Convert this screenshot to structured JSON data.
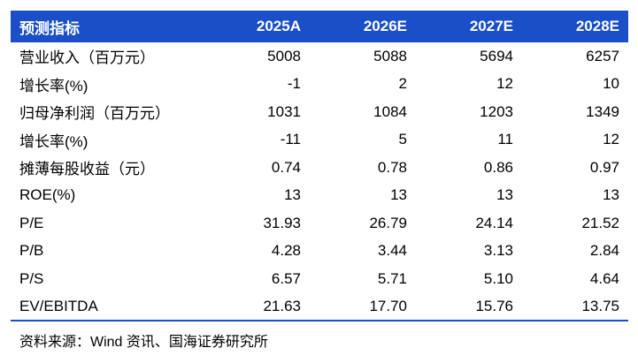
{
  "table": {
    "headers": [
      "预测指标",
      "2025A",
      "2026E",
      "2027E",
      "2028E"
    ],
    "rows": [
      [
        "营业收入（百万元）",
        "5008",
        "5088",
        "5694",
        "6257"
      ],
      [
        "增长率(%)",
        "-1",
        "2",
        "12",
        "10"
      ],
      [
        "归母净利润（百万元）",
        "1031",
        "1084",
        "1203",
        "1349"
      ],
      [
        "增长率(%)",
        "-11",
        "5",
        "11",
        "12"
      ],
      [
        "摊薄每股收益（元）",
        "0.74",
        "0.78",
        "0.86",
        "0.97"
      ],
      [
        "ROE(%)",
        "13",
        "13",
        "13",
        "13"
      ],
      [
        "P/E",
        "31.93",
        "26.79",
        "24.14",
        "21.52"
      ],
      [
        "P/B",
        "4.28",
        "3.44",
        "3.13",
        "2.84"
      ],
      [
        "P/S",
        "6.57",
        "5.71",
        "5.10",
        "4.64"
      ],
      [
        "EV/EBITDA",
        "21.63",
        "17.70",
        "15.76",
        "13.75"
      ]
    ]
  },
  "source": "资料来源：Wind 资讯、国海证券研究所",
  "colors": {
    "header_bg": "#1b4fc7",
    "header_text": "#ffffff"
  }
}
